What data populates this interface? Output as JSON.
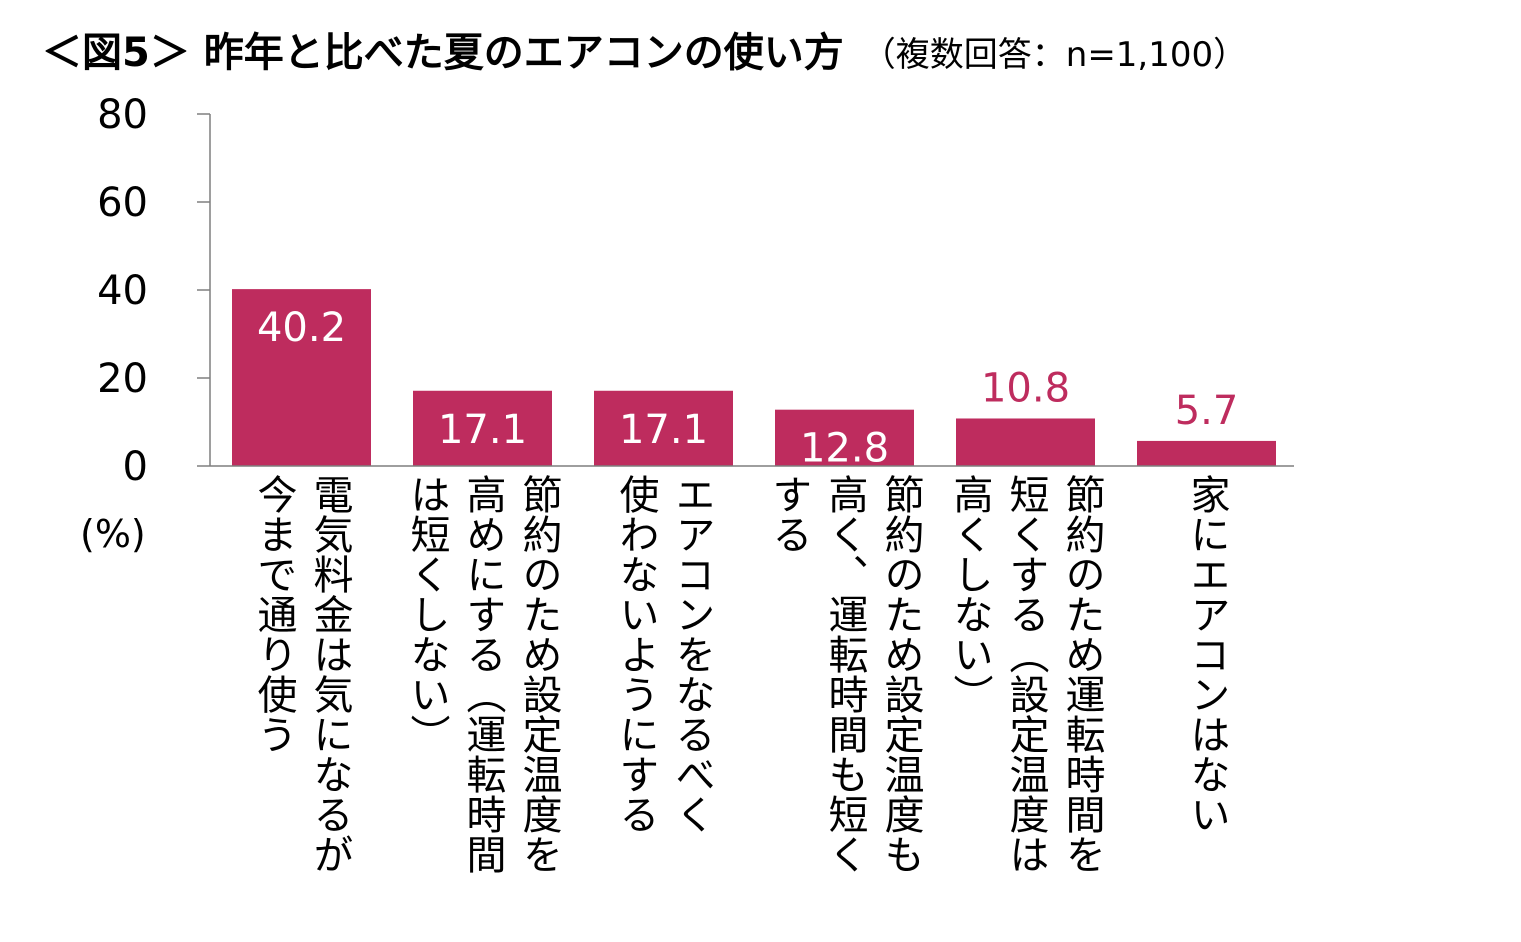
{
  "header": {
    "title": "＜図5＞ 昨年と比べた夏のエアコンの使い方",
    "subtitle": "（複数回答：n=1,100）"
  },
  "chart_data": {
    "type": "bar",
    "title": "＜図5＞ 昨年と比べた夏のエアコンの使い方",
    "subtitle": "（複数回答：n=1,100）",
    "categories": [
      "電気料金は気になるが\n今まで通り使う",
      "節約のため設定温度を\n高めにする（運転時間\nは短くしない）",
      "エアコンをなるべく\n使わないようにする",
      "節約のため設定温度も\n高く、運転時間も短く\nする",
      "節約のため運転時間を\n短くする（設定温度は\n高くしない）",
      "家にエアコンはない"
    ],
    "values": [
      40.2,
      17.1,
      17.1,
      12.8,
      10.8,
      5.7
    ],
    "value_labels": [
      "40.2",
      "17.1",
      "17.1",
      "12.8",
      "10.8",
      "5.7"
    ],
    "value_label_position": [
      "inside",
      "inside",
      "inside",
      "inside",
      "above",
      "above"
    ],
    "ylabel": "(%)",
    "ylim": [
      0,
      80
    ],
    "yticks": [
      0,
      20,
      40,
      60,
      80
    ],
    "ytick_labels": [
      "0",
      "20",
      "40",
      "60",
      "80"
    ],
    "grid": false,
    "legend": "none",
    "colors": {
      "bar": "#BE2C5E",
      "label_inside": "#ffffff",
      "label_above": "#BE2C5E",
      "axis": "#7f7f7f"
    }
  }
}
